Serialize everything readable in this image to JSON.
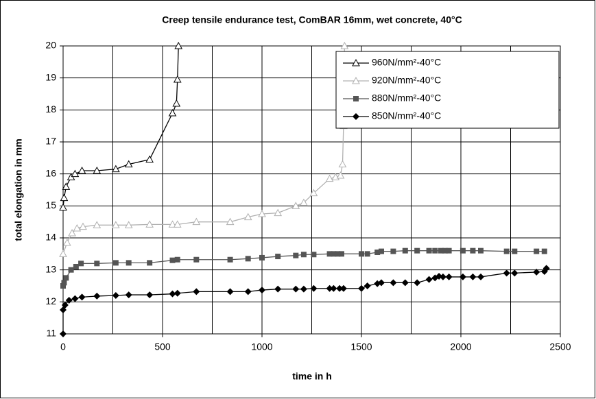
{
  "chart_data": {
    "type": "line",
    "title": "Creep tensile endurance test, ComBAR 16mm, wet concrete, 40°C",
    "xlabel": "time in h",
    "ylabel": "total elongation in mm",
    "xlim": [
      0,
      2500
    ],
    "ylim": [
      11,
      20
    ],
    "xticks": [
      0,
      500,
      1000,
      1500,
      2000,
      2500
    ],
    "yticks": [
      11,
      12,
      13,
      14,
      15,
      16,
      17,
      18,
      19,
      20
    ],
    "xgrid": [
      250,
      500,
      750,
      1000,
      1250,
      1500,
      1750,
      2000,
      2250
    ],
    "grid": true,
    "legend": "upper right",
    "series": [
      {
        "name": "960N/mm²-40°C",
        "color": "#000000",
        "marker": "triangle",
        "x": [
          0,
          5,
          15,
          40,
          60,
          95,
          170,
          265,
          330,
          435,
          550,
          570,
          575,
          580
        ],
        "values": [
          14.95,
          15.25,
          15.6,
          15.9,
          16.0,
          16.1,
          16.1,
          16.15,
          16.3,
          16.45,
          17.9,
          18.2,
          18.95,
          20
        ]
      },
      {
        "name": "920N/mm²-40°C",
        "color": "#b0b0b0",
        "marker": "triangle",
        "x": [
          0,
          20,
          45,
          70,
          100,
          170,
          265,
          330,
          435,
          550,
          575,
          670,
          840,
          930,
          1000,
          1080,
          1170,
          1210,
          1260,
          1340,
          1370,
          1395,
          1405,
          1410,
          1415
        ],
        "values": [
          13.5,
          13.85,
          14.15,
          14.3,
          14.35,
          14.4,
          14.4,
          14.4,
          14.42,
          14.42,
          14.42,
          14.5,
          14.5,
          14.65,
          14.75,
          14.78,
          15.0,
          15.1,
          15.4,
          15.85,
          15.9,
          15.95,
          16.3,
          17.5,
          20
        ]
      },
      {
        "name": "880N/mm²-40°C",
        "color": "#555555",
        "marker": "square",
        "x": [
          0,
          5,
          15,
          40,
          65,
          90,
          170,
          265,
          330,
          435,
          550,
          575,
          670,
          840,
          930,
          1000,
          1080,
          1170,
          1210,
          1260,
          1340,
          1360,
          1380,
          1400,
          1500,
          1530,
          1580,
          1600,
          1660,
          1720,
          1780,
          1840,
          1870,
          1900,
          1920,
          1940,
          2010,
          2060,
          2100,
          2230,
          2270,
          2380,
          2420
        ],
        "values": [
          12.5,
          12.6,
          12.75,
          13.0,
          13.1,
          13.2,
          13.2,
          13.22,
          13.22,
          13.22,
          13.3,
          13.32,
          13.32,
          13.32,
          13.35,
          13.38,
          13.42,
          13.45,
          13.48,
          13.48,
          13.5,
          13.5,
          13.5,
          13.5,
          13.5,
          13.5,
          13.55,
          13.58,
          13.58,
          13.6,
          13.6,
          13.6,
          13.6,
          13.6,
          13.6,
          13.6,
          13.6,
          13.6,
          13.6,
          13.58,
          13.58,
          13.58,
          13.58
        ]
      },
      {
        "name": "850N/mm²-40°C",
        "color": "#000000",
        "marker": "diamond",
        "x": [
          0,
          0,
          10,
          30,
          60,
          95,
          170,
          265,
          330,
          435,
          550,
          575,
          670,
          840,
          930,
          1000,
          1080,
          1170,
          1210,
          1260,
          1340,
          1360,
          1390,
          1410,
          1500,
          1530,
          1580,
          1600,
          1660,
          1720,
          1780,
          1840,
          1870,
          1890,
          1910,
          1940,
          2010,
          2060,
          2100,
          2230,
          2270,
          2380,
          2420,
          2430
        ],
        "values": [
          11,
          11.75,
          11.9,
          12.05,
          12.1,
          12.15,
          12.18,
          12.2,
          12.22,
          12.22,
          12.25,
          12.27,
          12.32,
          12.32,
          12.32,
          12.37,
          12.4,
          12.4,
          12.4,
          12.42,
          12.42,
          12.42,
          12.42,
          12.42,
          12.42,
          12.5,
          12.57,
          12.6,
          12.6,
          12.6,
          12.6,
          12.7,
          12.75,
          12.8,
          12.78,
          12.78,
          12.78,
          12.78,
          12.78,
          12.9,
          12.9,
          12.93,
          12.95,
          13.05
        ]
      }
    ]
  }
}
